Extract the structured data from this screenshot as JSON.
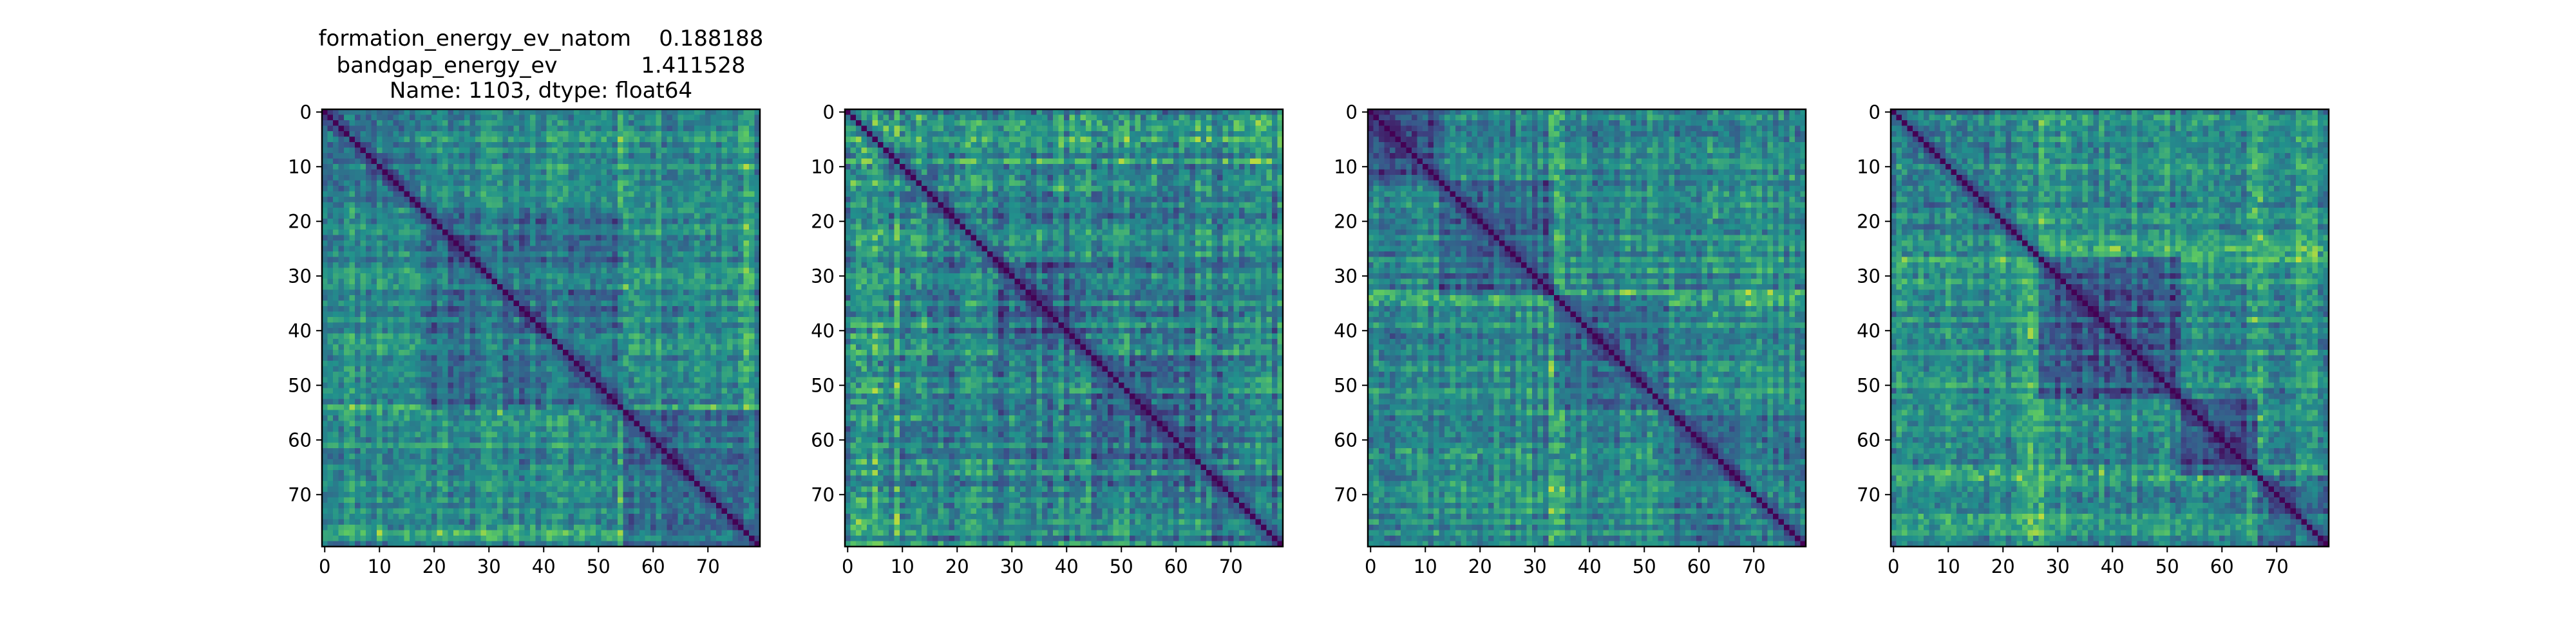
{
  "chart_data": {
    "type": "heatmap",
    "figure_title_lines": [
      "formation_energy_ev_natom    0.188188",
      "bandgap_energy_ev            1.411528",
      "Name: 1103, dtype: float64"
    ],
    "matrix_size": 80,
    "colormap": "viridis",
    "colormap_stops": [
      "#440154",
      "#3b528b",
      "#21918c",
      "#5ec962",
      "#fde725"
    ],
    "value_range": [
      0,
      1
    ],
    "xticks": [
      0,
      10,
      20,
      30,
      40,
      50,
      60,
      70
    ],
    "yticks": [
      0,
      10,
      20,
      30,
      40,
      50,
      60,
      70
    ],
    "panels": [
      {
        "id": "panel-1",
        "diagonal_value": 0,
        "base_value": 0.5,
        "noise_amplitude": 0.22,
        "seed": 11,
        "blocks": [
          {
            "start": 0,
            "end": 17,
            "value": 0.42
          },
          {
            "start": 18,
            "end": 54,
            "value": 0.38
          },
          {
            "start": 55,
            "end": 79,
            "value": 0.4
          }
        ],
        "bright_rows": [
          54,
          55,
          56,
          76,
          77
        ]
      },
      {
        "id": "panel-2",
        "diagonal_value": 0,
        "base_value": 0.46,
        "noise_amplitude": 0.26,
        "seed": 23,
        "blocks": [
          {
            "start": 0,
            "end": 3,
            "value": 0.72
          },
          {
            "start": 28,
            "end": 44,
            "value": 0.35
          },
          {
            "start": 45,
            "end": 64,
            "value": 0.38
          },
          {
            "start": 65,
            "end": 79,
            "value": 0.4
          }
        ],
        "bright_rows": [
          1,
          2,
          3,
          5,
          6,
          9,
          12,
          14
        ]
      },
      {
        "id": "panel-3",
        "diagonal_value": 0,
        "base_value": 0.48,
        "noise_amplitude": 0.22,
        "seed": 37,
        "blocks": [
          {
            "start": 0,
            "end": 12,
            "value": 0.3
          },
          {
            "start": 13,
            "end": 33,
            "value": 0.34
          },
          {
            "start": 34,
            "end": 54,
            "value": 0.36
          },
          {
            "start": 55,
            "end": 79,
            "value": 0.4
          }
        ],
        "bright_rows": [
          33,
          34,
          35,
          62,
          63
        ]
      },
      {
        "id": "panel-4",
        "diagonal_value": 0,
        "base_value": 0.5,
        "noise_amplitude": 0.24,
        "seed": 51,
        "blocks": [
          {
            "start": 0,
            "end": 26,
            "value": 0.42
          },
          {
            "start": 27,
            "end": 52,
            "value": 0.3
          },
          {
            "start": 53,
            "end": 66,
            "value": 0.3
          },
          {
            "start": 67,
            "end": 79,
            "value": 0.36
          }
        ],
        "bright_rows": [
          25,
          26,
          27,
          66,
          67
        ]
      }
    ]
  }
}
